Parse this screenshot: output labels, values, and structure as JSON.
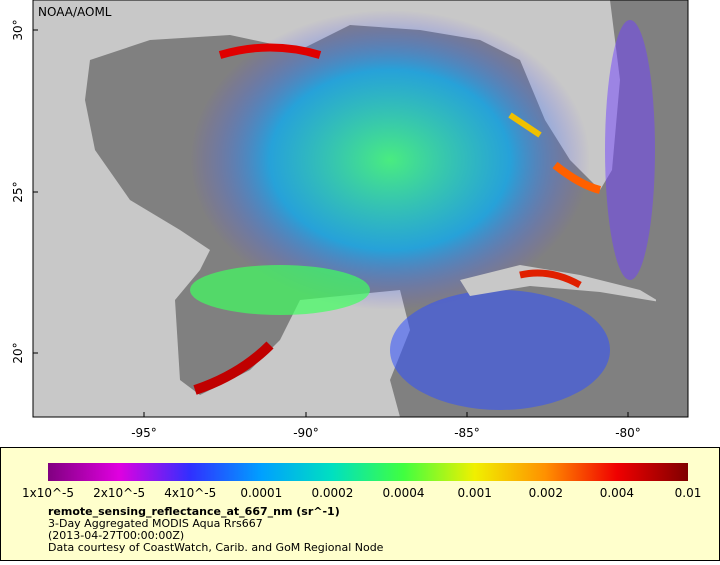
{
  "map": {
    "credit": "NOAA/AOML",
    "lat_labels": [
      "30°",
      "25°",
      "20°"
    ],
    "lon_labels": [
      "-95°",
      "-90°",
      "-85°",
      "-80°"
    ]
  },
  "colorbar": {
    "labels": [
      "1x10^-5",
      "2x10^-5",
      "4x10^-5",
      "0.0001",
      "0.0002",
      "0.0004",
      "0.001",
      "0.002",
      "0.004",
      "0.01"
    ],
    "colors": [
      "#800080",
      "#e000e0",
      "#3030ff",
      "#00a0ff",
      "#00e0c0",
      "#40ff40",
      "#f0f000",
      "#ff9000",
      "#f00000",
      "#800000"
    ]
  },
  "caption": {
    "variable": "remote_sensing_reflectance_at_667_nm (sr^-1)",
    "description": "3-Day Aggregated MODIS Aqua Rrs667",
    "time": "(2013-04-27T00:00:00Z)",
    "credit": "Data courtesy of CoastWatch, Carib. and GoM Regional Node"
  }
}
